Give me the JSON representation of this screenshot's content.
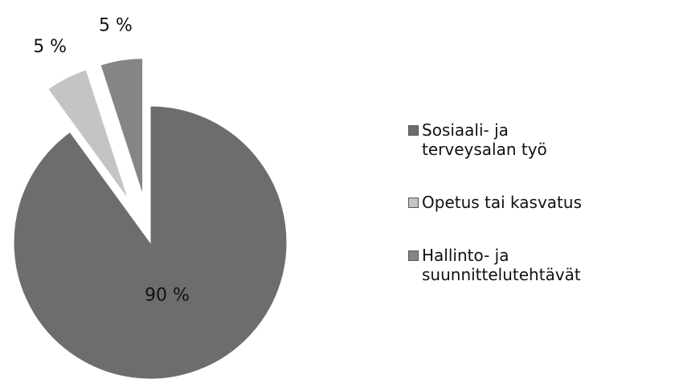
{
  "chart_data": {
    "type": "pie",
    "categories": [
      "Sosiaali- ja terveysalan työ",
      "Opetus tai kasvatus",
      "Hallinto- ja suunnittelutehtävät"
    ],
    "values": [
      90,
      5,
      5
    ],
    "value_labels": [
      "90 %",
      "5 %",
      "5 %"
    ],
    "colors": [
      "#6d6d6d",
      "#c4c4c4",
      "#858585"
    ],
    "legend": "right"
  }
}
